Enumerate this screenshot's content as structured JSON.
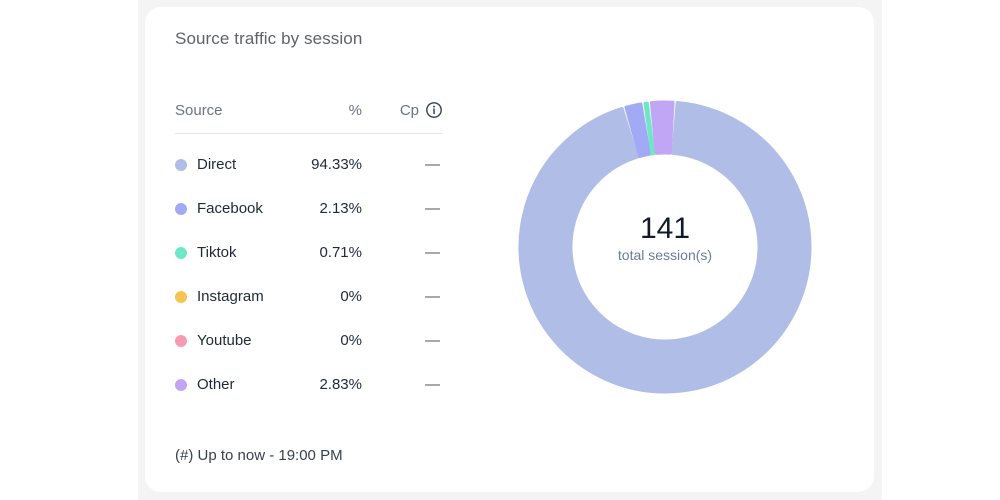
{
  "card": {
    "title": "Source traffic by session",
    "footer": "(#) Up to now - 19:00 PM"
  },
  "table": {
    "headers": {
      "source": "Source",
      "percent": "%",
      "cp": "Cp"
    },
    "info_icon": "info-icon",
    "rows": [
      {
        "label": "Direct",
        "percent": "94.33%",
        "cp": "—",
        "color": "#b0bde6"
      },
      {
        "label": "Facebook",
        "percent": "2.13%",
        "cp": "—",
        "color": "#a3aaf5"
      },
      {
        "label": "Tiktok",
        "percent": "0.71%",
        "cp": "—",
        "color": "#6ee7c7"
      },
      {
        "label": "Instagram",
        "percent": "0%",
        "cp": "—",
        "color": "#f5c451"
      },
      {
        "label": "Youtube",
        "percent": "0%",
        "cp": "—",
        "color": "#f79bb3"
      },
      {
        "label": "Other",
        "percent": "2.83%",
        "cp": "—",
        "color": "#c0a6f5"
      }
    ]
  },
  "chart_data": {
    "type": "pie",
    "donut": true,
    "center_value": "141",
    "center_label": "total session(s)",
    "categories": [
      "Direct",
      "Facebook",
      "Tiktok",
      "Instagram",
      "Youtube",
      "Other"
    ],
    "values": [
      94.33,
      2.13,
      0.71,
      0,
      0,
      2.83
    ],
    "colors": [
      "#b0bde6",
      "#a3aaf5",
      "#6ee7c7",
      "#f5c451",
      "#f79bb3",
      "#c0a6f5"
    ],
    "start_angle": "top",
    "direction": "clockwise",
    "legend": "left-table"
  }
}
